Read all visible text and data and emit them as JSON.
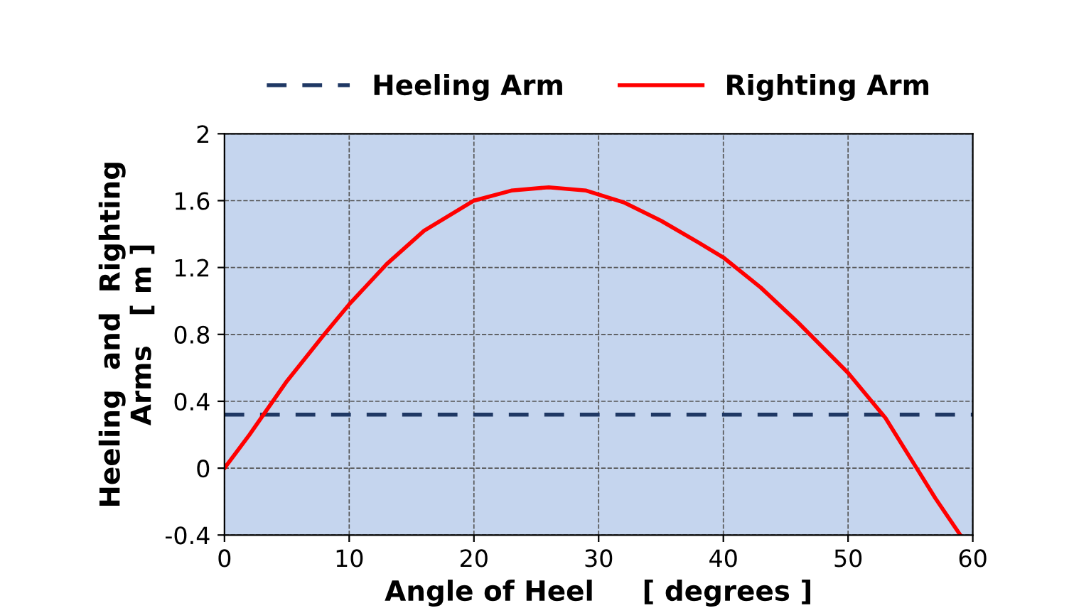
{
  "chart_data": {
    "type": "line",
    "xlabel": "Angle of Heel     [ degrees ]",
    "ylabel": "Heeling  and  Righting\nArms   [ m ]",
    "xlim": [
      0,
      60
    ],
    "xticks": [
      0,
      10,
      20,
      30,
      40,
      50,
      60
    ],
    "ylim": [
      -0.4,
      2
    ],
    "yticks": [
      -0.4,
      0,
      0.4,
      0.8,
      1.2,
      1.6,
      2
    ],
    "grid": true,
    "legend": "top",
    "series": [
      {
        "name": "Heeling Arm",
        "color": "#1f3864",
        "line_style": "dashed",
        "x": [
          0,
          60
        ],
        "values": [
          0.32,
          0.32
        ]
      },
      {
        "name": "Righting Arm",
        "color": "#ff0000",
        "line_style": "solid",
        "x": [
          0,
          2,
          5,
          8,
          10,
          13,
          16,
          20,
          23,
          26,
          29,
          32,
          35,
          38,
          40,
          43,
          46,
          50,
          53,
          55.5,
          57,
          59
        ],
        "values": [
          0,
          0.2,
          0.52,
          0.8,
          0.98,
          1.22,
          1.42,
          1.6,
          1.66,
          1.68,
          1.66,
          1.59,
          1.48,
          1.35,
          1.26,
          1.08,
          0.87,
          0.57,
          0.3,
          0,
          -0.18,
          -0.4
        ]
      }
    ]
  }
}
